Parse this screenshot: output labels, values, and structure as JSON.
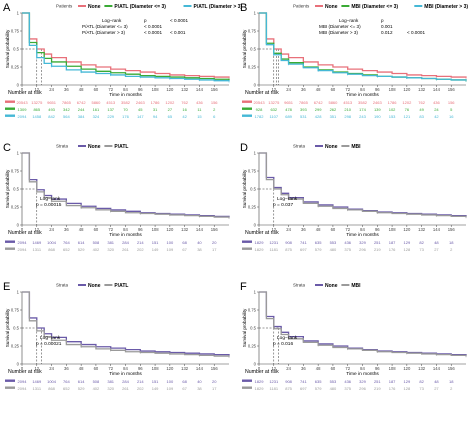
{
  "chart_data": [
    {
      "type": "line",
      "panel_letter": "A",
      "legend_prefix": "Patients",
      "xlabel": "Time in months",
      "ylabel": "Survival probability",
      "xlim": [
        0,
        168
      ],
      "ylim": [
        0,
        1
      ],
      "xticks": [
        0,
        12,
        24,
        36,
        48,
        60,
        72,
        84,
        96,
        108,
        120,
        132,
        144,
        156
      ],
      "yticks": [
        0,
        0.25,
        0.5,
        0.75,
        1
      ],
      "series": [
        {
          "name": "None",
          "color": "#e8707a",
          "x": [
            0,
            6,
            12,
            18,
            24,
            36,
            48,
            60,
            72,
            84,
            96,
            108,
            120,
            132,
            144,
            156,
            168
          ],
          "y": [
            1,
            0.64,
            0.5,
            0.43,
            0.38,
            0.32,
            0.28,
            0.25,
            0.22,
            0.2,
            0.18,
            0.16,
            0.14,
            0.13,
            0.12,
            0.11,
            0.1
          ]
        },
        {
          "name": "P/ATL (Diameter <= 3)",
          "color": "#3aaa35",
          "x": [
            0,
            6,
            12,
            18,
            24,
            36,
            48,
            60,
            72,
            84,
            96,
            108,
            120,
            132,
            144,
            156,
            168
          ],
          "y": [
            1,
            0.59,
            0.45,
            0.37,
            0.32,
            0.26,
            0.22,
            0.19,
            0.17,
            0.15,
            0.13,
            0.12,
            0.11,
            0.1,
            0.09,
            0.08,
            0.07
          ]
        },
        {
          "name": "P/ATL (Diameter > 3)",
          "color": "#45b8d6",
          "x": [
            0,
            6,
            12,
            18,
            24,
            36,
            48,
            60,
            72,
            84,
            96,
            108,
            120,
            132,
            144,
            156,
            168
          ],
          "y": [
            1,
            0.55,
            0.38,
            0.3,
            0.26,
            0.21,
            0.18,
            0.16,
            0.14,
            0.12,
            0.11,
            0.1,
            0.09,
            0.08,
            0.07,
            0.06,
            0.05
          ]
        }
      ],
      "median_x": [
        12,
        16
      ],
      "logrank_lines": [
        "Log−rank",
        "P/ATL (Diameter <= 3)",
        "P/ATL (Diameter > 3)"
      ],
      "logrank_vals_1": [
        "p",
        "< 0.0001",
        "< 0.0001"
      ],
      "logrank_vals_2": [
        "< 0.0001",
        "",
        "< 0.001"
      ],
      "risk_title": "Number at risk",
      "risk_rows": [
        {
          "color": "#e8707a",
          "values": [
            "20543",
            "13275",
            "9651",
            "7865",
            "6742",
            "5860",
            "4513",
            "3582",
            "2463",
            "1786",
            "1202",
            "762",
            "436",
            "156"
          ]
        },
        {
          "color": "#3aaa35",
          "values": [
            "1309",
            "865",
            "493",
            "342",
            "244",
            "161",
            "137",
            "70",
            "45",
            "31",
            "27",
            "16",
            "11",
            "2"
          ]
        },
        {
          "color": "#45b8d6",
          "values": [
            "2094",
            "1458",
            "842",
            "564",
            "384",
            "324",
            "229",
            "176",
            "147",
            "94",
            "65",
            "42",
            "15",
            "6"
          ]
        }
      ]
    },
    {
      "type": "line",
      "panel_letter": "B",
      "legend_prefix": "Patients",
      "xlabel": "Time in months",
      "ylabel": "Survival probability",
      "xlim": [
        0,
        168
      ],
      "ylim": [
        0,
        1
      ],
      "xticks": [
        0,
        12,
        24,
        36,
        48,
        60,
        72,
        84,
        96,
        108,
        120,
        132,
        144,
        156
      ],
      "yticks": [
        0,
        0.25,
        0.5,
        0.75,
        1
      ],
      "series": [
        {
          "name": "None",
          "color": "#e8707a",
          "x": [
            0,
            6,
            12,
            18,
            24,
            36,
            48,
            60,
            72,
            84,
            96,
            108,
            120,
            132,
            144,
            156,
            168
          ],
          "y": [
            1,
            0.64,
            0.5,
            0.43,
            0.38,
            0.32,
            0.28,
            0.25,
            0.22,
            0.2,
            0.18,
            0.16,
            0.14,
            0.13,
            0.12,
            0.11,
            0.1
          ]
        },
        {
          "name": "MBI (Diameter <= 3)",
          "color": "#3aaa35",
          "x": [
            0,
            6,
            12,
            18,
            24,
            36,
            48,
            60,
            72,
            84,
            96,
            108,
            120,
            132,
            144,
            156,
            168
          ],
          "y": [
            1,
            0.58,
            0.44,
            0.36,
            0.31,
            0.25,
            0.21,
            0.18,
            0.16,
            0.14,
            0.12,
            0.11,
            0.1,
            0.09,
            0.08,
            0.07,
            0.06
          ]
        },
        {
          "name": "MBI (Diameter > 3)",
          "color": "#45b8d6",
          "x": [
            0,
            6,
            12,
            18,
            24,
            36,
            48,
            60,
            72,
            84,
            96,
            108,
            120,
            132,
            144,
            156,
            168
          ],
          "y": [
            1,
            0.56,
            0.42,
            0.34,
            0.29,
            0.24,
            0.2,
            0.17,
            0.15,
            0.13,
            0.12,
            0.11,
            0.1,
            0.09,
            0.08,
            0.07,
            0.06
          ]
        }
      ],
      "median_x": [
        12,
        14,
        16
      ],
      "logrank_lines": [
        "Log−rank",
        "MBI (Diameter <= 3)",
        "MBI (Diameter > 3)"
      ],
      "logrank_vals_1": [
        "p",
        "0.001",
        "0.012"
      ],
      "logrank_vals_2": [
        "",
        "",
        "< 0.0001"
      ],
      "risk_title": "Number at risk",
      "risk_rows": [
        {
          "color": "#e8707a",
          "values": [
            "20543",
            "13275",
            "9651",
            "7865",
            "6742",
            "5860",
            "4513",
            "3582",
            "2463",
            "1786",
            "1202",
            "762",
            "436",
            "156"
          ]
        },
        {
          "color": "#3aaa35",
          "values": [
            "928",
            "632",
            "478",
            "393",
            "299",
            "262",
            "210",
            "174",
            "139",
            "102",
            "76",
            "49",
            "24",
            "5"
          ]
        },
        {
          "color": "#45b8d6",
          "values": [
            "1782",
            "1107",
            "689",
            "531",
            "428",
            "351",
            "298",
            "243",
            "190",
            "153",
            "121",
            "83",
            "42",
            "16"
          ]
        }
      ]
    },
    {
      "type": "line",
      "panel_letter": "C",
      "legend_prefix": "Strata",
      "xlabel": "Time in months",
      "ylabel": "Survival probability",
      "xlim": [
        0,
        168
      ],
      "ylim": [
        0,
        1
      ],
      "xticks": [
        0,
        12,
        24,
        36,
        48,
        60,
        72,
        84,
        96,
        108,
        120,
        132,
        144,
        156
      ],
      "yticks": [
        0,
        0.25,
        0.5,
        0.75,
        1
      ],
      "series": [
        {
          "name": "None",
          "color": "#6a5aa8",
          "x": [
            0,
            6,
            12,
            18,
            24,
            36,
            48,
            60,
            72,
            84,
            96,
            108,
            120,
            132,
            144,
            156,
            168
          ],
          "y": [
            1,
            0.63,
            0.49,
            0.41,
            0.36,
            0.3,
            0.26,
            0.23,
            0.21,
            0.19,
            0.17,
            0.16,
            0.15,
            0.14,
            0.13,
            0.12,
            0.11
          ]
        },
        {
          "name": "P/ATL",
          "color": "#9a9a9a",
          "x": [
            0,
            6,
            12,
            18,
            24,
            36,
            48,
            60,
            72,
            84,
            96,
            108,
            120,
            132,
            144,
            156,
            168
          ],
          "y": [
            1,
            0.6,
            0.46,
            0.38,
            0.33,
            0.27,
            0.24,
            0.21,
            0.19,
            0.17,
            0.16,
            0.15,
            0.14,
            0.13,
            0.12,
            0.11,
            0.1
          ]
        }
      ],
      "median_x": [
        12
      ],
      "logrank_lines": [
        "Log−rank",
        "p = 0.00015"
      ],
      "risk_title": "Number at risk",
      "risk_rows": [
        {
          "color": "#6a5aa8",
          "values": [
            "2094",
            "1469",
            "1004",
            "764",
            "614",
            "508",
            "381",
            "284",
            "214",
            "151",
            "100",
            "68",
            "40",
            "20"
          ]
        },
        {
          "color": "#9a9a9a",
          "values": [
            "2094",
            "1311",
            "868",
            "652",
            "529",
            "402",
            "320",
            "261",
            "202",
            "149",
            "109",
            "67",
            "38",
            "17"
          ]
        }
      ]
    },
    {
      "type": "line",
      "panel_letter": "D",
      "legend_prefix": "Strata",
      "xlabel": "Time in months",
      "ylabel": "Survival probability",
      "xlim": [
        0,
        168
      ],
      "ylim": [
        0,
        1
      ],
      "xticks": [
        0,
        12,
        24,
        36,
        48,
        60,
        72,
        84,
        96,
        108,
        120,
        132,
        144,
        156
      ],
      "yticks": [
        0,
        0.25,
        0.5,
        0.75,
        1
      ],
      "series": [
        {
          "name": "None",
          "color": "#6a5aa8",
          "x": [
            0,
            6,
            12,
            18,
            24,
            36,
            48,
            60,
            72,
            84,
            96,
            108,
            120,
            132,
            144,
            156,
            168
          ],
          "y": [
            1,
            0.66,
            0.52,
            0.44,
            0.38,
            0.32,
            0.28,
            0.25,
            0.22,
            0.2,
            0.18,
            0.17,
            0.16,
            0.15,
            0.14,
            0.13,
            0.12
          ]
        },
        {
          "name": "MBI",
          "color": "#9a9a9a",
          "x": [
            0,
            6,
            12,
            18,
            24,
            36,
            48,
            60,
            72,
            84,
            96,
            108,
            120,
            132,
            144,
            156,
            168
          ],
          "y": [
            1,
            0.63,
            0.5,
            0.42,
            0.36,
            0.3,
            0.26,
            0.23,
            0.21,
            0.19,
            0.17,
            0.16,
            0.15,
            0.14,
            0.13,
            0.12,
            0.11
          ]
        }
      ],
      "median_x": [
        12
      ],
      "logrank_lines": [
        "Log−rank",
        "p = 0.037"
      ],
      "risk_title": "Number at risk",
      "risk_rows": [
        {
          "color": "#6a5aa8",
          "values": [
            "1829",
            "1231",
            "908",
            "741",
            "635",
            "553",
            "436",
            "329",
            "251",
            "187",
            "129",
            "82",
            "48",
            "18"
          ]
        },
        {
          "color": "#9a9a9a",
          "values": [
            "1829",
            "1181",
            "875",
            "697",
            "579",
            "480",
            "375",
            "296",
            "219",
            "176",
            "128",
            "73",
            "27",
            "2"
          ]
        }
      ]
    },
    {
      "type": "line",
      "panel_letter": "E",
      "legend_prefix": "Strata",
      "xlabel": "Time in months",
      "ylabel": "Survival probability",
      "xlim": [
        0,
        168
      ],
      "ylim": [
        0,
        1
      ],
      "xticks": [
        0,
        12,
        24,
        36,
        48,
        60,
        72,
        84,
        96,
        108,
        120,
        132,
        144,
        156
      ],
      "yticks": [
        0,
        0.25,
        0.5,
        0.75,
        1
      ],
      "series": [
        {
          "name": "None",
          "color": "#6a5aa8",
          "x": [
            0,
            6,
            12,
            18,
            24,
            36,
            48,
            60,
            72,
            84,
            96,
            108,
            120,
            132,
            144,
            156,
            168
          ],
          "y": [
            1,
            0.64,
            0.5,
            0.42,
            0.37,
            0.31,
            0.27,
            0.24,
            0.22,
            0.2,
            0.18,
            0.17,
            0.16,
            0.15,
            0.14,
            0.13,
            0.12
          ]
        },
        {
          "name": "P/ATL",
          "color": "#9a9a9a",
          "x": [
            0,
            6,
            12,
            18,
            24,
            36,
            48,
            60,
            72,
            84,
            96,
            108,
            120,
            132,
            144,
            156,
            168
          ],
          "y": [
            1,
            0.6,
            0.46,
            0.38,
            0.33,
            0.27,
            0.24,
            0.21,
            0.19,
            0.17,
            0.16,
            0.15,
            0.14,
            0.13,
            0.12,
            0.11,
            0.1
          ]
        }
      ],
      "median_x": [
        12,
        16
      ],
      "logrank_lines": [
        "Log−rank",
        "p = 0.00021"
      ],
      "risk_title": "Number at risk",
      "risk_rows": [
        {
          "color": "#6a5aa8",
          "values": [
            "2094",
            "1469",
            "1004",
            "764",
            "614",
            "508",
            "381",
            "284",
            "214",
            "151",
            "100",
            "68",
            "40",
            "20"
          ]
        },
        {
          "color": "#9a9a9a",
          "values": [
            "2094",
            "1311",
            "868",
            "652",
            "529",
            "402",
            "320",
            "261",
            "202",
            "149",
            "109",
            "67",
            "38",
            "17"
          ]
        }
      ]
    },
    {
      "type": "line",
      "panel_letter": "F",
      "legend_prefix": "Strata",
      "xlabel": "Time in months",
      "ylabel": "Survival probability",
      "xlim": [
        0,
        168
      ],
      "ylim": [
        0,
        1
      ],
      "xticks": [
        0,
        12,
        24,
        36,
        48,
        60,
        72,
        84,
        96,
        108,
        120,
        132,
        144,
        156
      ],
      "yticks": [
        0,
        0.25,
        0.5,
        0.75,
        1
      ],
      "series": [
        {
          "name": "None",
          "color": "#6a5aa8",
          "x": [
            0,
            6,
            12,
            18,
            24,
            36,
            48,
            60,
            72,
            84,
            96,
            108,
            120,
            132,
            144,
            156,
            168
          ],
          "y": [
            1,
            0.66,
            0.52,
            0.44,
            0.38,
            0.32,
            0.28,
            0.25,
            0.22,
            0.2,
            0.18,
            0.17,
            0.16,
            0.15,
            0.14,
            0.13,
            0.12
          ]
        },
        {
          "name": "MBI",
          "color": "#9a9a9a",
          "x": [
            0,
            6,
            12,
            18,
            24,
            36,
            48,
            60,
            72,
            84,
            96,
            108,
            120,
            132,
            144,
            156,
            168
          ],
          "y": [
            1,
            0.63,
            0.49,
            0.41,
            0.35,
            0.3,
            0.26,
            0.23,
            0.21,
            0.19,
            0.17,
            0.16,
            0.15,
            0.14,
            0.13,
            0.12,
            0.11
          ]
        }
      ],
      "median_x": [
        12,
        16
      ],
      "logrank_lines": [
        "Log−rank",
        "p = 0.016"
      ],
      "risk_title": "Number at risk",
      "risk_rows": [
        {
          "color": "#6a5aa8",
          "values": [
            "1829",
            "1231",
            "908",
            "741",
            "635",
            "553",
            "436",
            "329",
            "251",
            "187",
            "129",
            "82",
            "48",
            "18"
          ]
        },
        {
          "color": "#9a9a9a",
          "values": [
            "1829",
            "1181",
            "875",
            "697",
            "579",
            "480",
            "375",
            "296",
            "219",
            "176",
            "128",
            "73",
            "27",
            "2"
          ]
        }
      ]
    }
  ]
}
